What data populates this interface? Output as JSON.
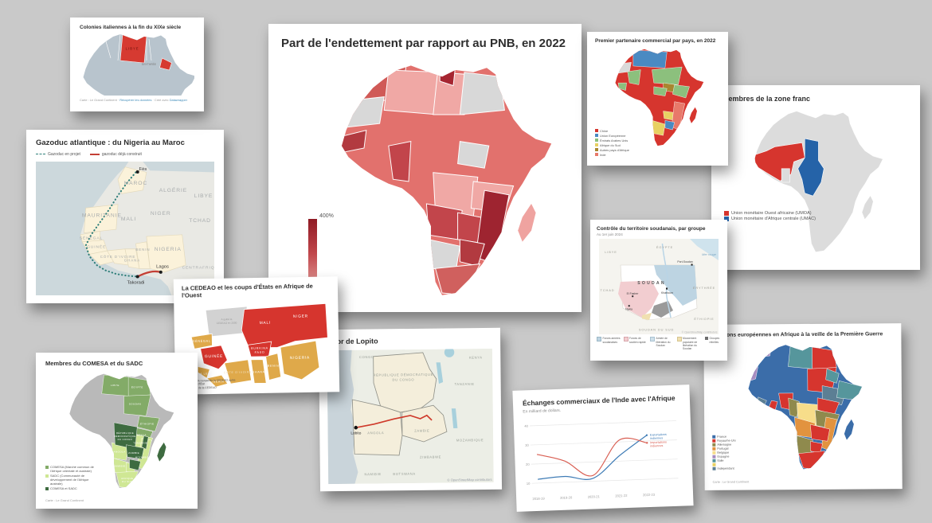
{
  "background_color": "#c9c9c9",
  "cards": {
    "colonies_italiennes": {
      "title": "Colonies italiennes à la fin du XIXe siècle",
      "map_labels": {
        "libye": "LIBYE",
        "erythree": "ÉRYTHRÉE"
      },
      "footer": {
        "credit": "Carte : Le Grand Continent ·",
        "link_data": "Récupérer les données",
        "created_with": "· Créé avec",
        "link_tool": "Datawrapper"
      }
    },
    "gazoduc": {
      "title": "Gazoduc atlantique : du Nigeria au Maroc",
      "legend": [
        {
          "label": "Gazoduc en projet",
          "color": "#2f7f7a"
        },
        {
          "label": "gazoduc déjà construit",
          "color": "#c43f35"
        }
      ],
      "country_labels": [
        "MAROC",
        "ALGÉRIE",
        "LIBYE",
        "MAURITANIE",
        "MALI",
        "NIGER",
        "TCHAD",
        "SÉNÉGAL",
        "GUINÉE",
        "CÔTE D'IVOIRE",
        "GHANA",
        "BENIN",
        "NIGERIA",
        "CENTRAFRIQUE"
      ],
      "cities": [
        "Fès",
        "Takoradi",
        "Lagos"
      ]
    },
    "endettement": {
      "title": "Part de l'endettement par rapport au PNB, en 2022",
      "legend_max_label": "400%"
    },
    "partenaire": {
      "title": "Premier partenaire commercial par pays, en 2022",
      "legend": [
        {
          "label": "Chine",
          "color": "#d6352e"
        },
        {
          "label": "Union Européenne",
          "color": "#4a8ac2"
        },
        {
          "label": "Émirats Arabes Unis",
          "color": "#8cc07d"
        },
        {
          "label": "Afrique du Sud",
          "color": "#e8d162"
        },
        {
          "label": "Autres pays d'Afrique",
          "color": "#a8862f"
        },
        {
          "label": "Inde",
          "color": "#e8796a"
        }
      ]
    },
    "zone_franc": {
      "title": "Membres de la zone franc",
      "legend": [
        {
          "label": "Union monétaire Ouest africaine (UMOA)",
          "color": "#d6352e"
        },
        {
          "label": "Union monétaire d'Afrique centrale (UMAC)",
          "color": "#2563a8"
        }
      ]
    },
    "soudan": {
      "title": "Contrôle du territoire soudanais, par groupe",
      "subtitle": "Au 1er juin 2024",
      "legend": [
        {
          "label": "Forces armées soudanaises",
          "color": "#bdd4e2"
        },
        {
          "label": "Forces de soutien rapide",
          "color": "#f2cdd0"
        },
        {
          "label": "Armée de libération du Soudan",
          "color": "#cfe0ea"
        },
        {
          "label": "Mouvement populaire de libération du Soudan",
          "color": "#f0e0b0"
        },
        {
          "label": "Groupes rebelles",
          "color": "#6e6e6e"
        }
      ],
      "map_labels": {
        "libye": "LIBYE",
        "egypte": "ÉGYPTE",
        "tchad": "TCHAD",
        "soudan": "SOUDAN",
        "erythree": "ÉRYTHRÉE",
        "ethiopie": "ÉTHIOPIE",
        "soudan_du_sud": "SOUDAN DU SUD",
        "mer_rouge": "Mer rouge"
      },
      "cities": [
        "Port-Soudan",
        "Khartoum",
        "El Fasher",
        "Nyala"
      ],
      "attribution": "© OpenStreetMap contributors"
    },
    "cedeao": {
      "title": "La CEDEAO et les coups d'États en Afrique de l'Ouest",
      "legend": [
        {
          "label": "A quitté ou suspendu la CEDEAO après un coup d'État",
          "color": "#d6352e"
        },
        {
          "label": "Membre de la CEDEAO",
          "color": "#dfa94a"
        }
      ],
      "note_lines": [
        "A quitté la",
        "CEDEAO en 2000"
      ],
      "country_labels": [
        "MALI",
        "NIGER",
        "BURKINA",
        "FASO",
        "GUINÉE",
        "SÉNÉGAL",
        "SIERRA LEONE",
        "LIBERIA",
        "CÔTE D'IVOIRE",
        "GHANA",
        "BENIN",
        "NIGERIA"
      ]
    },
    "comesa": {
      "title": "Membres du COMESA et du SADC",
      "legend": [
        {
          "label": "COMESA (Marché commun de l'Afrique orientale et australe)",
          "color": "#83ab68"
        },
        {
          "label": "SADC (Communauté de développement de l'Afrique australe)",
          "color": "#cfe794"
        },
        {
          "label": "COMESA et SADC",
          "color": "#3e6b40"
        }
      ],
      "country_labels": [
        "LIBYE",
        "ÉGYPTE",
        "SOUDAN",
        "ÉTHIOPIE",
        "KENYA",
        "TANZANIE",
        "RÉPUBLIQUE",
        "DÉMOCRATIQUE",
        "DU CONGO",
        "ZAMBIE",
        "ANGOLA",
        "NAMIBIE",
        "AFRIQUE",
        "DU SUD",
        "MOZAMBIQUE"
      ],
      "footer": "Carte : Le Grand Continent"
    },
    "lobito": {
      "title": "Le corridor de Lopito",
      "map_labels": [
        "RÉPUBLIQUE DÉMOCRATIQUE",
        "DU CONGO",
        "ANGOLA",
        "ZAMBIE",
        "TANZANIE",
        "KENYA",
        "MOZAMBIQUE",
        "ZIMBABWE",
        "BOTSWANA",
        "NAMIBIE",
        "CONGO"
      ],
      "city": "Lobito",
      "attribution": "© OpenStreetMap contributors"
    },
    "inde": {
      "title": "Échanges commerciaux de l'Inde avec l'Afrique",
      "subtitle": "En milliard de dollars.",
      "chart_data": {
        "type": "line",
        "x": [
          "2018-19",
          "2019-20",
          "2020-21",
          "2021-22",
          "2022-23"
        ],
        "series": [
          {
            "name": "Exportations indiennes",
            "color": "#3f7cb6",
            "values": [
              12,
              13,
              11.5,
              23,
              33
            ]
          },
          {
            "name": "Importations indiennes",
            "color": "#d95f53",
            "values": [
              25,
              21,
              13,
              31,
              29
            ]
          }
        ],
        "ylim": [
          5,
          42
        ],
        "yticks": [
          10,
          20,
          30,
          40
        ],
        "grid": true,
        "legend_position": "end-of-line"
      }
    },
    "colonies_1914": {
      "title": "Les possessions européennes en Afrique à la veille de la Première Guerre",
      "legend": [
        {
          "label": "France",
          "color": "#3b6da9"
        },
        {
          "label": "Royaume-Uni",
          "color": "#d6352e"
        },
        {
          "label": "Allemagne",
          "color": "#8f8a4d"
        },
        {
          "label": "Portugal",
          "color": "#e2933f"
        },
        {
          "label": "Belgique",
          "color": "#f7dd8a"
        },
        {
          "label": "Espagne",
          "color": "#a78cc0"
        },
        {
          "label": "Italie",
          "color": "#56969c"
        },
        {
          "label": "",
          "color": "#e8d162"
        },
        {
          "label": "Indépendant",
          "color": "#5c7f94"
        }
      ],
      "footer": "Carte : Le Grand Continent"
    }
  }
}
